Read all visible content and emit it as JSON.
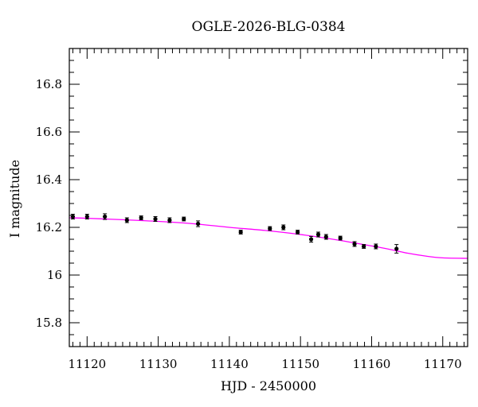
{
  "chart_data": {
    "type": "scatter",
    "title": "OGLE-2026-BLG-0384",
    "xlabel": "HJD - 2450000",
    "ylabel": "I magnitude",
    "xlim": [
      11117.5,
      11173.5
    ],
    "ylim": [
      16.95,
      15.7
    ],
    "y_inverted": true,
    "grid": false,
    "x_ticks": [
      11120,
      11130,
      11140,
      11150,
      11160,
      11170
    ],
    "x_tick_labels": [
      "11120",
      "11130",
      "11140",
      "11150",
      "11160",
      "11170"
    ],
    "y_ticks": [
      15.8,
      16.0,
      16.2,
      16.4,
      16.6,
      16.8
    ],
    "y_tick_labels": [
      "15.8",
      "16",
      "16.2",
      "16.4",
      "16.6",
      "16.8"
    ],
    "x_minor_step": 1,
    "y_minor_step": 0.05,
    "colors": {
      "points": "#000000",
      "model": "#ff00ff",
      "frame": "#000000"
    },
    "series": [
      {
        "kind": "points_with_errorbars",
        "x": [
          11118.0,
          11120.0,
          11122.5,
          11125.6,
          11127.6,
          11129.6,
          11131.6,
          11133.6,
          11135.6,
          11141.6,
          11145.7,
          11147.6,
          11149.6,
          11151.5,
          11152.5,
          11153.6,
          11155.6,
          11157.6,
          11158.9,
          11160.6,
          11163.5
        ],
        "y": [
          16.245,
          16.245,
          16.245,
          16.23,
          16.24,
          16.235,
          16.23,
          16.235,
          16.215,
          16.18,
          16.195,
          16.2,
          16.18,
          16.15,
          16.17,
          16.16,
          16.155,
          16.13,
          16.12,
          16.12,
          16.11
        ],
        "err": [
          0.01,
          0.01,
          0.012,
          0.01,
          0.008,
          0.01,
          0.01,
          0.008,
          0.012,
          0.008,
          0.008,
          0.01,
          0.008,
          0.012,
          0.01,
          0.01,
          0.008,
          0.01,
          0.008,
          0.01,
          0.018
        ]
      },
      {
        "kind": "model_curve",
        "x": [
          11117.5,
          11120,
          11125,
          11130,
          11135,
          11140,
          11145,
          11150,
          11155,
          11160,
          11162.5,
          11165,
          11167.5,
          11170,
          11173.5
        ],
        "y": [
          16.24,
          16.238,
          16.232,
          16.225,
          16.215,
          16.2,
          16.187,
          16.17,
          16.148,
          16.122,
          16.108,
          16.092,
          16.08,
          16.072,
          16.07
        ]
      }
    ]
  }
}
